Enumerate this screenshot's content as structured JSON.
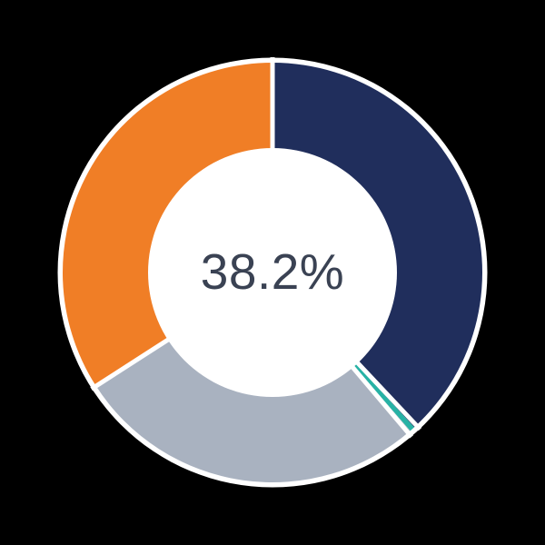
{
  "chart_data": {
    "type": "pie",
    "donut": true,
    "center_label": "38.2%",
    "center_label_color": "#3a4253",
    "background_color": "#000000",
    "ring_outline_color": "#ffffff",
    "start_angle_deg": 0,
    "direction": "clockwise",
    "inner_radius_ratio": 0.59,
    "legend": "none",
    "slices": [
      {
        "name": "navy",
        "value": 38.2,
        "color": "#202e5c"
      },
      {
        "name": "teal",
        "value": 0.4,
        "color": "#27b2a5"
      },
      {
        "name": "gray",
        "value": 27.3,
        "color": "#a9b2c0"
      },
      {
        "name": "orange",
        "value": 34.1,
        "color": "#f07e26"
      }
    ]
  }
}
